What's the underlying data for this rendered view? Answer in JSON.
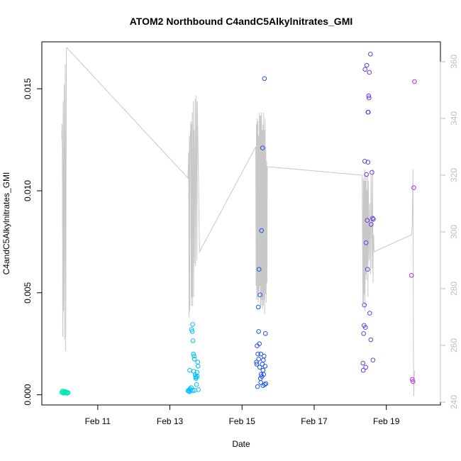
{
  "chart_data": {
    "type": "scatter",
    "title": "ATOM2 Northbound C4andC5Alkylnitrates_GMI",
    "xlabel": "Date",
    "ylabel": "C4andC5Alkylnitrates_GMI",
    "y2label": "",
    "xlim": [
      9.45,
      20.5
    ],
    "ylim": [
      -0.0005,
      0.0173
    ],
    "y2lim": [
      239,
      367
    ],
    "grid": false,
    "legend": "none",
    "x_ticks": [
      {
        "value": 11,
        "label": "Feb 11"
      },
      {
        "value": 13,
        "label": "Feb 13"
      },
      {
        "value": 15,
        "label": "Feb 15"
      },
      {
        "value": 17,
        "label": "Feb 17"
      },
      {
        "value": 19,
        "label": "Feb 19"
      }
    ],
    "y_ticks": [
      {
        "value": 0.0,
        "label": "0.000"
      },
      {
        "value": 0.005,
        "label": "0.005"
      },
      {
        "value": 0.01,
        "label": "0.010"
      },
      {
        "value": 0.015,
        "label": "0.015"
      }
    ],
    "y2_ticks": [
      {
        "value": 240,
        "label": "240"
      },
      {
        "value": 260,
        "label": "260"
      },
      {
        "value": 280,
        "label": "280"
      },
      {
        "value": 300,
        "label": "300"
      },
      {
        "value": 320,
        "label": "320"
      },
      {
        "value": 340,
        "label": "340"
      },
      {
        "value": 360,
        "label": "360"
      }
    ],
    "series": [
      {
        "kind": "points",
        "color": "#00e8b8",
        "points": [
          [
            10.0,
            0.00012
          ],
          [
            10.02,
            0.00018
          ],
          [
            10.03,
            0.0001
          ],
          [
            10.05,
            0.00015
          ],
          [
            10.06,
            8e-05
          ],
          [
            10.08,
            0.00014
          ],
          [
            10.09,
            0.00011
          ],
          [
            10.1,
            0.00016
          ],
          [
            10.12,
            9e-05
          ],
          [
            10.13,
            0.00013
          ],
          [
            10.15,
            7e-05
          ],
          [
            10.16,
            0.00012
          ],
          [
            10.18,
            0.0001
          ]
        ]
      },
      {
        "kind": "points",
        "color": "#00bfff",
        "points": [
          [
            13.5,
            0.0002
          ],
          [
            13.52,
            0.00018
          ],
          [
            13.54,
            0.00025
          ],
          [
            13.55,
            0.00015
          ],
          [
            13.56,
            0.0003
          ],
          [
            13.58,
            0.00022
          ],
          [
            13.59,
            0.00035
          ],
          [
            13.6,
            0.0032
          ],
          [
            13.62,
            0.0031
          ],
          [
            13.63,
            0.00345
          ],
          [
            13.64,
            0.00265
          ],
          [
            13.65,
            0.002
          ],
          [
            13.66,
            0.00115
          ],
          [
            13.67,
            0.0019
          ],
          [
            13.68,
            0.00175
          ],
          [
            13.7,
            0.001
          ],
          [
            13.71,
            0.0009
          ],
          [
            13.72,
            0.0008
          ],
          [
            13.73,
            0.00085
          ],
          [
            13.74,
            0.0005
          ],
          [
            13.75,
            0.0011
          ],
          [
            13.76,
            0.0009
          ],
          [
            13.77,
            0.0016
          ],
          [
            13.78,
            0.0014
          ],
          [
            13.79,
            0.00025
          ],
          [
            13.64,
            0.0002
          ],
          [
            13.69,
            0.00022
          ],
          [
            13.55,
            0.0012
          ]
        ]
      },
      {
        "kind": "points",
        "color": "#1e50f0",
        "points": [
          [
            15.4,
            0.0016
          ],
          [
            15.41,
            0.0015
          ],
          [
            15.42,
            0.0024
          ],
          [
            15.43,
            0.0004
          ],
          [
            15.44,
            0.002
          ],
          [
            15.45,
            0.0043
          ],
          [
            15.46,
            0.00175
          ],
          [
            15.47,
            0.00615
          ],
          [
            15.48,
            0.0025
          ],
          [
            15.49,
            0.00135
          ],
          [
            15.5,
            0.0049
          ],
          [
            15.51,
            0.0008
          ],
          [
            15.52,
            0.002
          ],
          [
            15.53,
            0.001
          ],
          [
            15.54,
            0.00805
          ],
          [
            15.55,
            0.0009
          ],
          [
            15.56,
            0.0015
          ],
          [
            15.57,
            0.0121
          ],
          [
            15.58,
            0.00045
          ],
          [
            15.59,
            0.0017
          ],
          [
            15.6,
            0.001
          ],
          [
            15.61,
            0.0019
          ],
          [
            15.62,
            0.0155
          ],
          [
            15.63,
            0.0005
          ],
          [
            15.64,
            0.0014
          ],
          [
            15.65,
            0.003
          ],
          [
            15.66,
            0.00055
          ],
          [
            15.46,
            0.0031
          ],
          [
            15.52,
            0.0006
          ],
          [
            15.58,
            0.0012
          ]
        ]
      },
      {
        "kind": "points",
        "color": "#6a3de0",
        "points": [
          [
            18.35,
            0.00155
          ],
          [
            18.36,
            0.0012
          ],
          [
            18.37,
            0.003
          ],
          [
            18.38,
            0.0034
          ],
          [
            18.39,
            0.0044
          ],
          [
            18.4,
            0.01145
          ],
          [
            18.41,
            0.01595
          ],
          [
            18.42,
            0.0033
          ],
          [
            18.43,
            0.00135
          ],
          [
            18.44,
            0.00745
          ],
          [
            18.45,
            0.0108
          ],
          [
            18.46,
            0.01615
          ],
          [
            18.47,
            0.00855
          ],
          [
            18.48,
            0.00615
          ],
          [
            18.49,
            0.0114
          ],
          [
            18.5,
            0.01385
          ],
          [
            18.51,
            0.01465
          ],
          [
            18.52,
            0.01455
          ],
          [
            18.53,
            0.0158
          ],
          [
            18.54,
            0.004
          ],
          [
            18.56,
            0.0167
          ],
          [
            18.57,
            0.0027
          ],
          [
            18.58,
            0.00835
          ],
          [
            18.6,
            0.0109
          ],
          [
            18.62,
            0.00865
          ],
          [
            18.63,
            0.0017
          ],
          [
            18.64,
            0.0086
          ],
          [
            18.49,
            0.01385
          ]
        ]
      },
      {
        "kind": "points",
        "color": "#cc22ee",
        "points": [
          [
            19.7,
            0.00585
          ],
          [
            19.72,
            0.00075
          ],
          [
            19.74,
            0.00065
          ],
          [
            19.76,
            0.01015
          ],
          [
            19.78,
            0.01535
          ]
        ]
      },
      {
        "kind": "line",
        "axis": "right",
        "color": "#c8c8c8",
        "points": [
          [
            10.0,
            333
          ],
          [
            10.01,
            338
          ],
          [
            10.02,
            327
          ],
          [
            10.03,
            263
          ],
          [
            10.04,
            346
          ],
          [
            10.05,
            272
          ],
          [
            10.06,
            308
          ],
          [
            10.07,
            352
          ],
          [
            10.08,
            262
          ],
          [
            10.09,
            325
          ],
          [
            10.1,
            359
          ],
          [
            10.11,
            258
          ],
          [
            10.12,
            307
          ],
          [
            10.13,
            364
          ],
          [
            10.14,
            365
          ],
          [
            13.5,
            319
          ],
          [
            13.52,
            328
          ],
          [
            13.53,
            270
          ],
          [
            13.54,
            334
          ],
          [
            13.55,
            272
          ],
          [
            13.56,
            331
          ],
          [
            13.58,
            339
          ],
          [
            13.59,
            274
          ],
          [
            13.6,
            338
          ],
          [
            13.61,
            277
          ],
          [
            13.62,
            342
          ],
          [
            13.63,
            274
          ],
          [
            13.65,
            346
          ],
          [
            13.66,
            277
          ],
          [
            13.67,
            336
          ],
          [
            13.68,
            289
          ],
          [
            13.7,
            347
          ],
          [
            13.71,
            288
          ],
          [
            13.73,
            348
          ],
          [
            13.75,
            290
          ],
          [
            13.76,
            346
          ],
          [
            13.78,
            330
          ],
          [
            13.8,
            312
          ],
          [
            13.82,
            293
          ],
          [
            15.38,
            330
          ],
          [
            15.39,
            281
          ],
          [
            15.4,
            338
          ],
          [
            15.41,
            276
          ],
          [
            15.42,
            340
          ],
          [
            15.43,
            277
          ],
          [
            15.44,
            339
          ],
          [
            15.45,
            275
          ],
          [
            15.46,
            334
          ],
          [
            15.47,
            279
          ],
          [
            15.48,
            342
          ],
          [
            15.49,
            281
          ],
          [
            15.5,
            341
          ],
          [
            15.51,
            273
          ],
          [
            15.52,
            341
          ],
          [
            15.53,
            274
          ],
          [
            15.54,
            342
          ],
          [
            15.55,
            276
          ],
          [
            15.56,
            336
          ],
          [
            15.57,
            273
          ],
          [
            15.58,
            338
          ],
          [
            15.59,
            274
          ],
          [
            15.6,
            342
          ],
          [
            15.61,
            276
          ],
          [
            15.62,
            336
          ],
          [
            15.63,
            271
          ],
          [
            15.64,
            340
          ],
          [
            15.65,
            278
          ],
          [
            15.66,
            330
          ],
          [
            15.67,
            275
          ],
          [
            15.68,
            325
          ],
          [
            15.69,
            282
          ],
          [
            15.7,
            323
          ],
          [
            18.33,
            320
          ],
          [
            18.35,
            275
          ],
          [
            18.36,
            319
          ],
          [
            18.37,
            275
          ],
          [
            18.38,
            318
          ],
          [
            18.39,
            278
          ],
          [
            18.4,
            322
          ],
          [
            18.41,
            272
          ],
          [
            18.42,
            318
          ],
          [
            18.43,
            285
          ],
          [
            18.44,
            320
          ],
          [
            18.45,
            283
          ],
          [
            18.46,
            315
          ],
          [
            18.47,
            288
          ],
          [
            18.48,
            320
          ],
          [
            18.49,
            277
          ],
          [
            18.5,
            318
          ],
          [
            18.52,
            290
          ],
          [
            18.54,
            310
          ],
          [
            18.56,
            285
          ],
          [
            18.58,
            320
          ],
          [
            18.6,
            287
          ],
          [
            18.62,
            322
          ],
          [
            18.63,
            282
          ],
          [
            18.64,
            296
          ],
          [
            18.65,
            299
          ],
          [
            18.66,
            293
          ],
          [
            19.7,
            299
          ],
          [
            19.72,
            303
          ],
          [
            19.74,
            322
          ],
          [
            19.75,
            259
          ],
          [
            19.76,
            242
          ],
          [
            19.77,
            248
          ],
          [
            19.78,
            251
          ]
        ]
      }
    ]
  }
}
